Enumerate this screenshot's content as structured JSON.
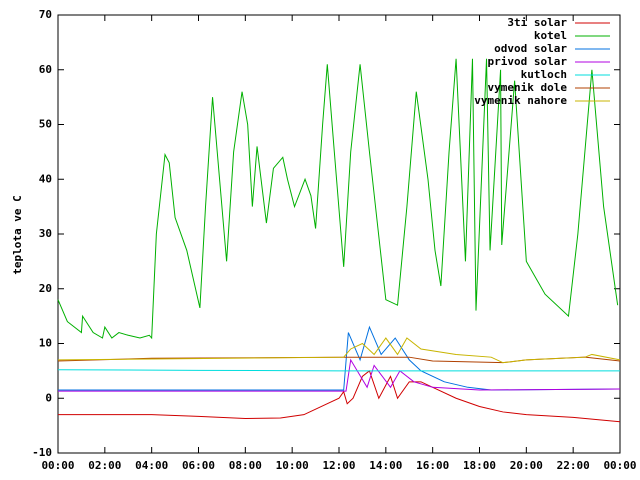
{
  "chart_data": {
    "type": "line",
    "ylabel": "teplota ve C",
    "xlim": [
      0,
      24
    ],
    "ylim": [
      -10,
      70
    ],
    "xticks": [
      {
        "value": 0,
        "label": "00:00"
      },
      {
        "value": 2,
        "label": "02:00"
      },
      {
        "value": 4,
        "label": "04:00"
      },
      {
        "value": 6,
        "label": "06:00"
      },
      {
        "value": 8,
        "label": "08:00"
      },
      {
        "value": 10,
        "label": "10:00"
      },
      {
        "value": 12,
        "label": "12:00"
      },
      {
        "value": 14,
        "label": "14:00"
      },
      {
        "value": 16,
        "label": "16:00"
      },
      {
        "value": 18,
        "label": "18:00"
      },
      {
        "value": 20,
        "label": "20:00"
      },
      {
        "value": 22,
        "label": "22:00"
      },
      {
        "value": 24,
        "label": "00:00"
      }
    ],
    "yticks": [
      -10,
      0,
      10,
      20,
      30,
      40,
      50,
      60,
      70
    ],
    "legend": "top-right",
    "series": [
      {
        "name": "3ti solar",
        "color": "#d00000",
        "x": [
          0,
          4,
          6,
          8,
          9.5,
          10.5,
          11,
          11.5,
          12,
          12.2,
          12.35,
          12.6,
          13,
          13.3,
          13.7,
          14.2,
          14.5,
          15,
          15.5,
          16,
          17,
          18,
          19,
          20,
          22,
          24
        ],
        "values": [
          -3,
          -3,
          -3.3,
          -3.7,
          -3.6,
          -3,
          -2,
          -1,
          0,
          1.2,
          -1,
          0,
          4,
          5,
          0,
          4,
          0,
          3,
          3,
          2,
          0,
          -1.5,
          -2.5,
          -3,
          -3.5,
          -4.3
        ]
      },
      {
        "name": "kotel",
        "color": "#00b000",
        "x": [
          0,
          0.4,
          1.0,
          1.05,
          1.5,
          1.9,
          2.0,
          2.3,
          2.6,
          3,
          3.5,
          3.9,
          4.0,
          4.2,
          4.57,
          4.75,
          5.0,
          5.5,
          6.06,
          6.3,
          6.6,
          6.9,
          7.2,
          7.5,
          7.86,
          8.1,
          8.3,
          8.5,
          8.9,
          9.2,
          9.6,
          9.8,
          10.1,
          10.55,
          10.8,
          11.0,
          11.3,
          11.5,
          11.8,
          12.2,
          12.5,
          12.9,
          13.3,
          14.0,
          14.5,
          14.9,
          15.3,
          15.8,
          16.1,
          16.35,
          16.7,
          17.0,
          17.4,
          17.7,
          17.85,
          18.3,
          18.45,
          18.9,
          18.95,
          19.5,
          20.0,
          20.8,
          21.8,
          22.2,
          22.8,
          23.3,
          23.9
        ],
        "values": [
          18,
          14,
          12,
          15,
          12,
          11,
          13,
          11,
          12,
          11.5,
          11,
          11.5,
          11,
          30,
          44.5,
          43,
          33,
          27,
          16.5,
          35,
          55,
          40,
          25,
          45,
          56,
          50,
          35,
          46,
          32,
          42,
          44,
          40,
          35,
          40,
          37,
          31,
          50,
          61,
          45,
          24,
          45,
          61,
          45,
          18,
          17,
          35,
          56,
          40,
          27,
          20.5,
          45,
          62,
          25,
          62,
          16,
          62,
          27,
          60,
          28,
          58,
          25,
          19,
          15,
          30,
          60,
          35,
          17
        ]
      },
      {
        "name": "odvod solar",
        "color": "#0070e0",
        "x": [
          0,
          12.2,
          12.4,
          12.9,
          13.3,
          13.8,
          14.4,
          15.0,
          15.5,
          16.5,
          17.5,
          18.5,
          24
        ],
        "values": [
          1.5,
          1.5,
          12,
          7,
          13,
          8,
          11,
          7,
          5,
          3,
          2,
          1.5,
          1.7
        ]
      },
      {
        "name": "privod solar",
        "color": "#b000e0",
        "x": [
          0,
          12.3,
          12.5,
          13.2,
          13.5,
          14.2,
          14.6,
          15.2,
          16,
          18,
          24
        ],
        "values": [
          1.3,
          1.3,
          7,
          2,
          6,
          2,
          5,
          3,
          2,
          1.5,
          1.7
        ]
      },
      {
        "name": "kutloch",
        "color": "#00dddd",
        "x": [
          0,
          6,
          12,
          18,
          24
        ],
        "values": [
          5.2,
          5.1,
          5,
          5,
          5
        ]
      },
      {
        "name": "vymenik dole",
        "color": "#b04000",
        "x": [
          0,
          4,
          12.2,
          15,
          16,
          19,
          20,
          22.5,
          24
        ],
        "values": [
          6.8,
          7.3,
          7.5,
          7.5,
          6.8,
          6.5,
          7,
          7.5,
          6.8
        ]
      },
      {
        "name": "vymenik nahore",
        "color": "#c8b400",
        "x": [
          0,
          12.2,
          12.5,
          13,
          13.5,
          14,
          14.5,
          14.9,
          15.5,
          17,
          18.5,
          19,
          20,
          22.5,
          22.8,
          24
        ],
        "values": [
          7,
          7.5,
          9,
          10,
          8,
          11,
          8,
          11,
          9,
          8,
          7.5,
          6.5,
          7,
          7.5,
          8,
          7
        ]
      }
    ]
  }
}
